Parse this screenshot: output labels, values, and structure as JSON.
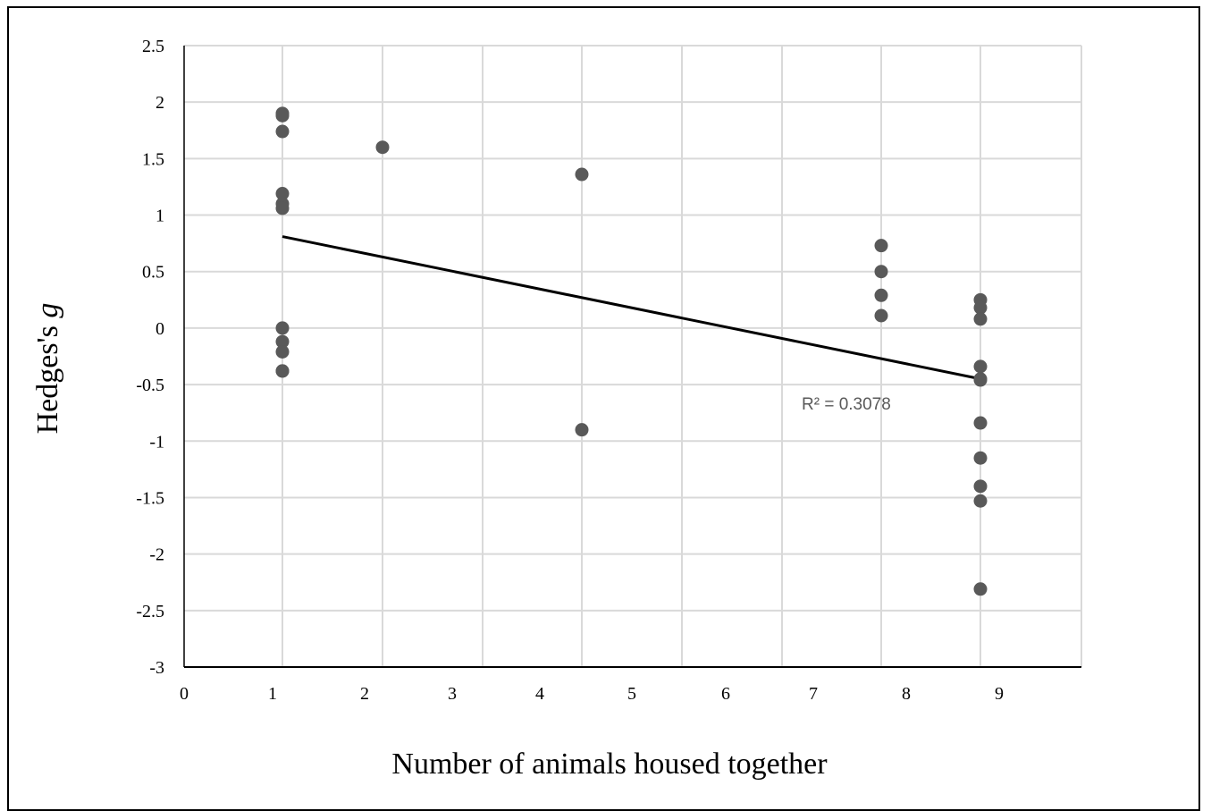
{
  "chart_data": {
    "type": "scatter",
    "title": "",
    "xlabel": "Number of animals housed together",
    "ylabel_main": "Hedges's ",
    "ylabel_italic": "g",
    "xlim": [
      0,
      9
    ],
    "ylim": [
      -3,
      2.5
    ],
    "grid": true,
    "x_tick_labels": [
      "0",
      "1",
      "2",
      "3",
      "4",
      "5",
      "6",
      "7",
      "8",
      "9"
    ],
    "y_ticks": [
      2.5,
      2,
      1.5,
      1,
      0.5,
      0,
      -0.5,
      -1,
      -1.5,
      -2,
      -2.5,
      -3
    ],
    "y_tick_labels": [
      "2.5",
      "2",
      "1.5",
      "1",
      "0.5",
      "0",
      "-0.5",
      "-1",
      "-1.5",
      "-2",
      "-2.5",
      "-3"
    ],
    "series": [
      {
        "x": [
          1,
          1,
          1,
          1,
          1,
          1,
          1,
          1,
          1,
          1,
          1,
          2,
          4,
          4,
          7,
          7,
          7,
          7,
          8,
          8,
          8,
          8,
          8,
          8,
          8,
          8,
          8,
          8,
          8
        ],
        "y": [
          1.9,
          1.88,
          1.74,
          1.19,
          1.1,
          1.06,
          0.0,
          -0.12,
          -0.21,
          -0.38,
          -0.38,
          1.6,
          1.36,
          -0.9,
          0.73,
          0.5,
          0.29,
          0.11,
          0.25,
          0.18,
          0.08,
          -0.34,
          -0.45,
          -0.84,
          -1.15,
          -1.4,
          -1.53,
          -2.31,
          -0.46
        ],
        "color": "#595959"
      }
    ],
    "trendline": {
      "type": "linear",
      "x": [
        1,
        8
      ],
      "y": [
        0.81,
        -0.45
      ],
      "color": "#000000",
      "label": "R² = 0.3078"
    },
    "colors": {
      "grid": "#d9d9d9",
      "axis": "#000000",
      "marker": "#595959"
    }
  }
}
